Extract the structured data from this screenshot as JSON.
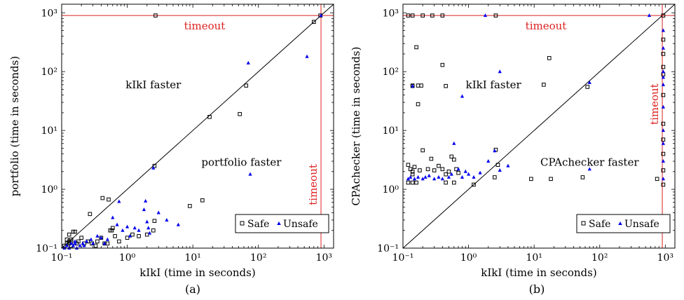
{
  "chart_data": [
    {
      "type": "scatter",
      "caption": "(a)",
      "xlabel": "kIkI (time in seconds)",
      "ylabel": "portfolio (time in seconds)",
      "scale": "log",
      "xlim": [
        0.1,
        1400
      ],
      "ylim": [
        0.1,
        1400
      ],
      "tick_labels": [
        "10⁻¹",
        "10⁰",
        "10¹",
        "10²",
        "10³"
      ],
      "timeout": 900,
      "timeout_label": "timeout",
      "region_labels": {
        "upper": "kIkI faster",
        "lower": "portfolio faster"
      },
      "legend": {
        "safe": "Safe",
        "unsafe": "Unsafe"
      },
      "colors": {
        "safe": "#000000",
        "unsafe": "#0000ee",
        "timeout": "#dd2222"
      },
      "series": [
        {
          "name": "Safe",
          "marker": "square",
          "points": [
            [
              0.11,
              0.11
            ],
            [
              0.12,
              0.12
            ],
            [
              0.13,
              0.12
            ],
            [
              0.14,
              0.13
            ],
            [
              0.15,
              0.19
            ],
            [
              0.13,
              0.17
            ],
            [
              0.16,
              0.19
            ],
            [
              0.17,
              0.12
            ],
            [
              0.12,
              0.14
            ],
            [
              0.14,
              0.11
            ],
            [
              0.18,
              0.13
            ],
            [
              0.2,
              0.15
            ],
            [
              0.22,
              0.12
            ],
            [
              0.25,
              0.13
            ],
            [
              0.27,
              0.38
            ],
            [
              0.29,
              0.12
            ],
            [
              0.33,
              0.11
            ],
            [
              0.35,
              0.13
            ],
            [
              0.4,
              0.15
            ],
            [
              0.42,
              0.71
            ],
            [
              0.45,
              0.12
            ],
            [
              0.5,
              0.12
            ],
            [
              0.52,
              0.67
            ],
            [
              0.55,
              0.2
            ],
            [
              0.58,
              0.2
            ],
            [
              0.6,
              0.22
            ],
            [
              0.65,
              0.16
            ],
            [
              0.75,
              0.13
            ],
            [
              1.0,
              0.15
            ],
            [
              1.2,
              0.17
            ],
            [
              1.5,
              0.16
            ],
            [
              2.0,
              0.17
            ],
            [
              2.5,
              0.2
            ],
            [
              2.6,
              0.29
            ],
            [
              9.0,
              0.52
            ],
            [
              14,
              0.65
            ],
            [
              2.6,
              2.5
            ],
            [
              18,
              17
            ],
            [
              52,
              19
            ],
            [
              65,
              58
            ],
            [
              700,
              700
            ],
            [
              880,
              900
            ],
            [
              2.7,
              900
            ],
            [
              0.13,
              0.13
            ],
            [
              0.14,
              0.14
            ]
          ]
        },
        {
          "name": "Unsafe",
          "marker": "triangle",
          "points": [
            [
              0.11,
              0.1
            ],
            [
              0.12,
              0.11
            ],
            [
              0.13,
              0.1
            ],
            [
              0.14,
              0.12
            ],
            [
              0.15,
              0.11
            ],
            [
              0.16,
              0.12
            ],
            [
              0.17,
              0.1
            ],
            [
              0.19,
              0.11
            ],
            [
              0.21,
              0.12
            ],
            [
              0.24,
              0.13
            ],
            [
              0.3,
              0.12
            ],
            [
              0.35,
              0.16
            ],
            [
              0.4,
              0.15
            ],
            [
              0.45,
              0.12
            ],
            [
              0.5,
              0.14
            ],
            [
              0.6,
              0.33
            ],
            [
              0.7,
              0.25
            ],
            [
              0.75,
              0.62
            ],
            [
              0.85,
              0.2
            ],
            [
              1.0,
              0.23
            ],
            [
              1.1,
              0.16
            ],
            [
              1.3,
              0.22
            ],
            [
              1.5,
              0.2
            ],
            [
              1.8,
              0.45
            ],
            [
              1.9,
              0.63
            ],
            [
              2.0,
              0.28
            ],
            [
              2.1,
              0.22
            ],
            [
              2.2,
              0.18
            ],
            [
              2.5,
              2.3
            ],
            [
              3.0,
              0.4
            ],
            [
              4.0,
              0.3
            ],
            [
              6.0,
              0.25
            ],
            [
              70,
              140
            ],
            [
              75,
              1.8
            ],
            [
              550,
              180
            ],
            [
              900,
              900
            ],
            [
              0.16,
              0.13
            ],
            [
              0.22,
              0.11
            ],
            [
              0.28,
              0.14
            ]
          ]
        }
      ]
    },
    {
      "type": "scatter",
      "caption": "(b)",
      "xlabel": "kIkI (time in seconds)",
      "ylabel": "CPAchecker (time in seconds)",
      "scale": "log",
      "xlim": [
        0.1,
        1400
      ],
      "ylim": [
        0.1,
        1400
      ],
      "tick_labels": [
        "10⁻¹",
        "10⁰",
        "10¹",
        "10²",
        "10³"
      ],
      "timeout": 900,
      "timeout_label": "timeout",
      "region_labels": {
        "upper": "kIkI faster",
        "lower": "CPAchecker faster"
      },
      "legend": {
        "safe": "Safe",
        "unsafe": "Unsafe"
      },
      "colors": {
        "safe": "#000000",
        "unsafe": "#0000ee",
        "timeout": "#dd2222"
      },
      "series": [
        {
          "name": "Safe",
          "marker": "square",
          "points": [
            [
              0.12,
              900
            ],
            [
              0.14,
              900
            ],
            [
              0.2,
              900
            ],
            [
              0.28,
              900
            ],
            [
              0.4,
              900
            ],
            [
              2.6,
              900
            ],
            [
              930,
              900
            ],
            [
              0.14,
              57
            ],
            [
              0.14,
              58
            ],
            [
              0.17,
              58
            ],
            [
              0.19,
              58
            ],
            [
              0.16,
              260
            ],
            [
              0.17,
              28
            ],
            [
              0.4,
              130
            ],
            [
              0.45,
              57
            ],
            [
              17,
              170
            ],
            [
              14,
              60
            ],
            [
              65,
              55
            ],
            [
              0.12,
              2.6
            ],
            [
              0.13,
              2.2
            ],
            [
              0.14,
              2.0
            ],
            [
              0.14,
              1.8
            ],
            [
              0.15,
              2.4
            ],
            [
              0.18,
              2.1
            ],
            [
              0.2,
              4.6
            ],
            [
              0.24,
              2.2
            ],
            [
              0.27,
              3.3
            ],
            [
              0.3,
              2.1
            ],
            [
              0.35,
              2.5
            ],
            [
              0.4,
              2.2
            ],
            [
              0.45,
              1.8
            ],
            [
              0.5,
              2.0
            ],
            [
              0.55,
              3.6
            ],
            [
              0.6,
              3.2
            ],
            [
              0.65,
              2.2
            ],
            [
              0.7,
              1.9
            ],
            [
              2.6,
              4.7
            ],
            [
              2.8,
              2.6
            ],
            [
              0.12,
              1.3
            ],
            [
              0.14,
              1.3
            ],
            [
              0.16,
              1.3
            ],
            [
              0.45,
              1.3
            ],
            [
              0.6,
              1.3
            ],
            [
              1.2,
              1.2
            ],
            [
              2.5,
              1.6
            ],
            [
              9,
              1.5
            ],
            [
              18,
              1.5
            ],
            [
              55,
              1.6
            ],
            [
              750,
              1.5
            ],
            [
              930,
              1.2
            ],
            [
              930,
              2.1
            ],
            [
              930,
              4.0
            ],
            [
              930,
              7
            ],
            [
              930,
              13
            ],
            [
              930,
              40
            ],
            [
              930,
              90
            ],
            [
              930,
              120
            ],
            [
              930,
              200
            ],
            [
              930,
              350
            ]
          ]
        },
        {
          "name": "Unsafe",
          "marker": "triangle",
          "points": [
            [
              1.8,
              900
            ],
            [
              570,
              900
            ],
            [
              0.14,
              57
            ],
            [
              3.0,
              100
            ],
            [
              0.8,
              38
            ],
            [
              70,
              65
            ],
            [
              0.12,
              1.5
            ],
            [
              0.13,
              1.6
            ],
            [
              0.15,
              1.5
            ],
            [
              0.17,
              1.6
            ],
            [
              0.2,
              1.5
            ],
            [
              0.22,
              1.6
            ],
            [
              0.25,
              1.7
            ],
            [
              0.3,
              1.5
            ],
            [
              0.35,
              1.6
            ],
            [
              0.4,
              1.5
            ],
            [
              0.5,
              1.6
            ],
            [
              0.55,
              1.8
            ],
            [
              0.6,
              6.0
            ],
            [
              0.7,
              2.2
            ],
            [
              0.8,
              1.6
            ],
            [
              0.9,
              2.0
            ],
            [
              1.0,
              1.8
            ],
            [
              1.2,
              1.6
            ],
            [
              1.5,
              1.9
            ],
            [
              2.0,
              3.0
            ],
            [
              2.5,
              4.5
            ],
            [
              3.0,
              2.1
            ],
            [
              4.0,
              2.5
            ],
            [
              70,
              2.2
            ],
            [
              930,
              1.5
            ],
            [
              930,
              3
            ],
            [
              930,
              6
            ],
            [
              930,
              10
            ],
            [
              930,
              25
            ],
            [
              930,
              60
            ],
            [
              930,
              100
            ],
            [
              930,
              250
            ],
            [
              930,
              500
            ],
            [
              930,
              80
            ]
          ]
        }
      ]
    }
  ]
}
